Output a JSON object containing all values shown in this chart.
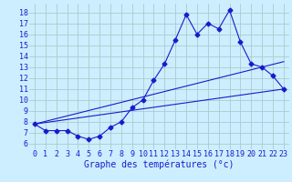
{
  "xlabel": "Graphe des températures (°c)",
  "background_color": "#cceeff",
  "grid_color": "#aacccc",
  "line_color": "#1a1acc",
  "xlim": [
    -0.5,
    23.5
  ],
  "ylim": [
    5.5,
    18.8
  ],
  "yticks": [
    6,
    7,
    8,
    9,
    10,
    11,
    12,
    13,
    14,
    15,
    16,
    17,
    18
  ],
  "xticks": [
    0,
    1,
    2,
    3,
    4,
    5,
    6,
    7,
    8,
    9,
    10,
    11,
    12,
    13,
    14,
    15,
    16,
    17,
    18,
    19,
    20,
    21,
    22,
    23
  ],
  "line1_x": [
    0,
    1,
    2,
    3,
    4,
    5,
    6,
    7,
    8,
    9,
    10,
    11,
    12,
    13,
    14,
    15,
    16,
    17,
    18,
    19,
    20,
    21,
    22,
    23
  ],
  "line1_y": [
    7.8,
    7.2,
    7.2,
    7.2,
    6.7,
    6.4,
    6.7,
    7.5,
    8.0,
    9.3,
    10.0,
    11.8,
    13.3,
    15.5,
    17.8,
    16.0,
    17.0,
    16.5,
    18.2,
    15.3,
    13.3,
    13.0,
    12.2,
    11.0
  ],
  "line2_x": [
    0,
    23
  ],
  "line2_y": [
    7.8,
    11.0
  ],
  "line3_x": [
    0,
    23
  ],
  "line3_y": [
    7.8,
    13.5
  ],
  "marker_style": "D",
  "marker_size": 2.5,
  "font_size_label": 7,
  "font_size_tick": 6
}
